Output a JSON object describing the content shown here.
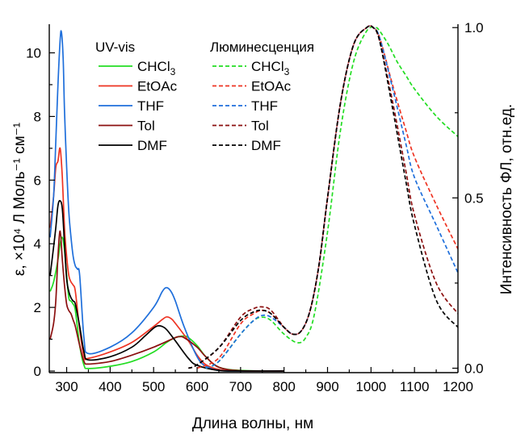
{
  "chart_data": {
    "type": "line",
    "xlabel": "Длина волны, нм",
    "ylabel_left": "ε, ×10⁴ Л Моль⁻¹ см⁻¹",
    "ylabel_right": "Интенсивность ФЛ, отн.ед.",
    "xlim": [
      260,
      1200
    ],
    "ylim_left": [
      -0.05,
      10.9
    ],
    "ylim_right": [
      -0.013,
      1.01
    ],
    "x_ticks": [
      "300",
      "400",
      "500",
      "600",
      "700",
      "800",
      "900",
      "1000",
      "1100",
      "1200"
    ],
    "y_left_ticks": [
      "0",
      "2",
      "4",
      "6",
      "8",
      "10"
    ],
    "y_right_ticks": [
      "0.0",
      "0.5",
      "1.0"
    ],
    "legend": {
      "uv_title": "UV-vis",
      "pl_title": "Люминесценция",
      "entries": [
        {
          "label": "CHCl",
          "sub": "3",
          "color": "#22dd22"
        },
        {
          "label": "EtOAc",
          "sub": "",
          "color": "#ee3322"
        },
        {
          "label": "THF",
          "sub": "",
          "color": "#1f6fdb"
        },
        {
          "label": "Tol",
          "sub": "",
          "color": "#8b0f0f"
        },
        {
          "label": "DMF",
          "sub": "",
          "color": "#000000"
        }
      ]
    },
    "uv_series": [
      {
        "name": "CHCl3",
        "color": "#22dd22",
        "x": [
          262,
          270,
          280,
          285,
          290,
          295,
          300,
          305,
          310,
          315,
          320,
          330,
          340,
          350,
          400,
          450,
          500,
          530,
          550,
          570,
          580,
          600,
          620,
          650,
          700,
          800
        ],
        "y": [
          2.5,
          2.8,
          3.5,
          4.0,
          4.2,
          3.8,
          3.0,
          2.3,
          2.2,
          2.1,
          1.9,
          0.8,
          0.18,
          0.08,
          0.15,
          0.3,
          0.6,
          0.9,
          1.05,
          1.1,
          1.05,
          0.8,
          0.45,
          0.12,
          0.02,
          0.0
        ]
      },
      {
        "name": "EtOAc",
        "color": "#ee3322",
        "x": [
          262,
          270,
          275,
          280,
          285,
          290,
          295,
          300,
          305,
          310,
          315,
          320,
          330,
          340,
          350,
          400,
          450,
          500,
          520,
          530,
          540,
          550,
          580,
          600,
          620,
          650,
          700,
          800
        ],
        "y": [
          4.5,
          5.5,
          6.4,
          6.6,
          7.0,
          6.1,
          4.5,
          3.6,
          3.0,
          2.8,
          2.7,
          2.5,
          1.3,
          0.45,
          0.4,
          0.6,
          0.9,
          1.4,
          1.62,
          1.7,
          1.65,
          1.5,
          0.95,
          0.5,
          0.2,
          0.05,
          0.0,
          0.0
        ]
      },
      {
        "name": "THF",
        "color": "#1f6fdb",
        "x": [
          262,
          270,
          275,
          280,
          285,
          288,
          292,
          295,
          300,
          305,
          310,
          315,
          320,
          325,
          330,
          340,
          350,
          400,
          450,
          500,
          520,
          530,
          540,
          550,
          570,
          600,
          620,
          650,
          700,
          800
        ],
        "y": [
          4.2,
          5.5,
          7.2,
          9.0,
          10.4,
          10.65,
          9.8,
          8.2,
          6.4,
          5.0,
          4.2,
          3.6,
          3.3,
          3.2,
          3.0,
          1.0,
          0.55,
          0.75,
          1.2,
          2.0,
          2.5,
          2.62,
          2.5,
          2.2,
          1.4,
          0.45,
          0.15,
          0.02,
          0.0,
          0.0
        ]
      },
      {
        "name": "Tol",
        "color": "#8b0f0f",
        "x": [
          262,
          270,
          275,
          280,
          285,
          290,
          295,
          300,
          305,
          310,
          315,
          320,
          330,
          340,
          350,
          400,
          450,
          500,
          550,
          560,
          570,
          600,
          620,
          650,
          700,
          800
        ],
        "y": [
          1.0,
          1.5,
          2.2,
          3.6,
          4.4,
          3.5,
          2.7,
          2.1,
          1.9,
          1.8,
          1.6,
          1.4,
          0.8,
          0.3,
          0.22,
          0.3,
          0.5,
          0.75,
          1.05,
          1.08,
          1.05,
          0.75,
          0.45,
          0.12,
          0.01,
          0.0
        ]
      },
      {
        "name": "DMF",
        "color": "#000000",
        "x": [
          262,
          270,
          275,
          280,
          285,
          290,
          295,
          300,
          305,
          310,
          315,
          320,
          330,
          340,
          350,
          400,
          450,
          480,
          500,
          510,
          520,
          530,
          550,
          580,
          600,
          650,
          700,
          800
        ],
        "y": [
          3.0,
          3.9,
          4.5,
          5.2,
          5.35,
          5.1,
          4.0,
          2.9,
          2.5,
          2.3,
          2.2,
          2.1,
          1.4,
          0.6,
          0.35,
          0.45,
          0.75,
          1.1,
          1.35,
          1.42,
          1.4,
          1.3,
          0.95,
          0.4,
          0.18,
          0.02,
          0.0,
          0.0
        ]
      }
    ],
    "pl_series": [
      {
        "name": "CHCl3",
        "color": "#22dd22",
        "x": [
          620,
          650,
          700,
          730,
          750,
          770,
          800,
          830,
          850,
          870,
          900,
          930,
          960,
          990,
          1010,
          1020,
          1040,
          1060,
          1080,
          1100,
          1150,
          1200
        ],
        "y": [
          0.0,
          0.02,
          0.1,
          0.14,
          0.15,
          0.14,
          0.1,
          0.075,
          0.09,
          0.16,
          0.4,
          0.7,
          0.9,
          0.99,
          1.0,
          0.99,
          0.95,
          0.9,
          0.86,
          0.82,
          0.74,
          0.68
        ]
      },
      {
        "name": "EtOAc",
        "color": "#ee3322",
        "x": [
          600,
          650,
          700,
          730,
          750,
          770,
          800,
          820,
          840,
          860,
          880,
          900,
          930,
          960,
          990,
          1005,
          1020,
          1050,
          1080,
          1100,
          1150,
          1200
        ],
        "y": [
          0.0,
          0.03,
          0.13,
          0.16,
          0.17,
          0.16,
          0.12,
          0.1,
          0.11,
          0.17,
          0.3,
          0.5,
          0.78,
          0.95,
          1.0,
          1.0,
          0.97,
          0.83,
          0.7,
          0.62,
          0.48,
          0.35
        ]
      },
      {
        "name": "THF",
        "color": "#1f6fdb",
        "x": [
          620,
          650,
          700,
          730,
          750,
          770,
          800,
          820,
          840,
          860,
          880,
          900,
          930,
          960,
          990,
          1005,
          1020,
          1050,
          1080,
          1100,
          1150,
          1200
        ],
        "y": [
          0.0,
          0.02,
          0.1,
          0.14,
          0.155,
          0.15,
          0.12,
          0.1,
          0.11,
          0.17,
          0.3,
          0.5,
          0.78,
          0.95,
          1.0,
          1.0,
          0.97,
          0.82,
          0.66,
          0.56,
          0.42,
          0.28
        ]
      },
      {
        "name": "Tol",
        "color": "#8b0f0f",
        "x": [
          580,
          600,
          650,
          700,
          730,
          750,
          770,
          800,
          820,
          840,
          860,
          880,
          900,
          930,
          960,
          990,
          1005,
          1020,
          1050,
          1080,
          1100,
          1150,
          1200
        ],
        "y": [
          0.0,
          0.01,
          0.06,
          0.15,
          0.175,
          0.18,
          0.17,
          0.12,
          0.1,
          0.11,
          0.17,
          0.3,
          0.5,
          0.78,
          0.95,
          1.0,
          1.0,
          0.96,
          0.78,
          0.58,
          0.45,
          0.25,
          0.16
        ]
      },
      {
        "name": "DMF",
        "color": "#000000",
        "x": [
          580,
          600,
          650,
          700,
          730,
          750,
          770,
          800,
          820,
          840,
          860,
          880,
          900,
          930,
          960,
          990,
          1005,
          1020,
          1050,
          1080,
          1100,
          1150,
          1200
        ],
        "y": [
          0.0,
          0.01,
          0.06,
          0.14,
          0.165,
          0.17,
          0.16,
          0.12,
          0.1,
          0.11,
          0.17,
          0.3,
          0.5,
          0.78,
          0.95,
          1.0,
          1.0,
          0.96,
          0.76,
          0.55,
          0.42,
          0.2,
          0.12
        ]
      }
    ]
  }
}
